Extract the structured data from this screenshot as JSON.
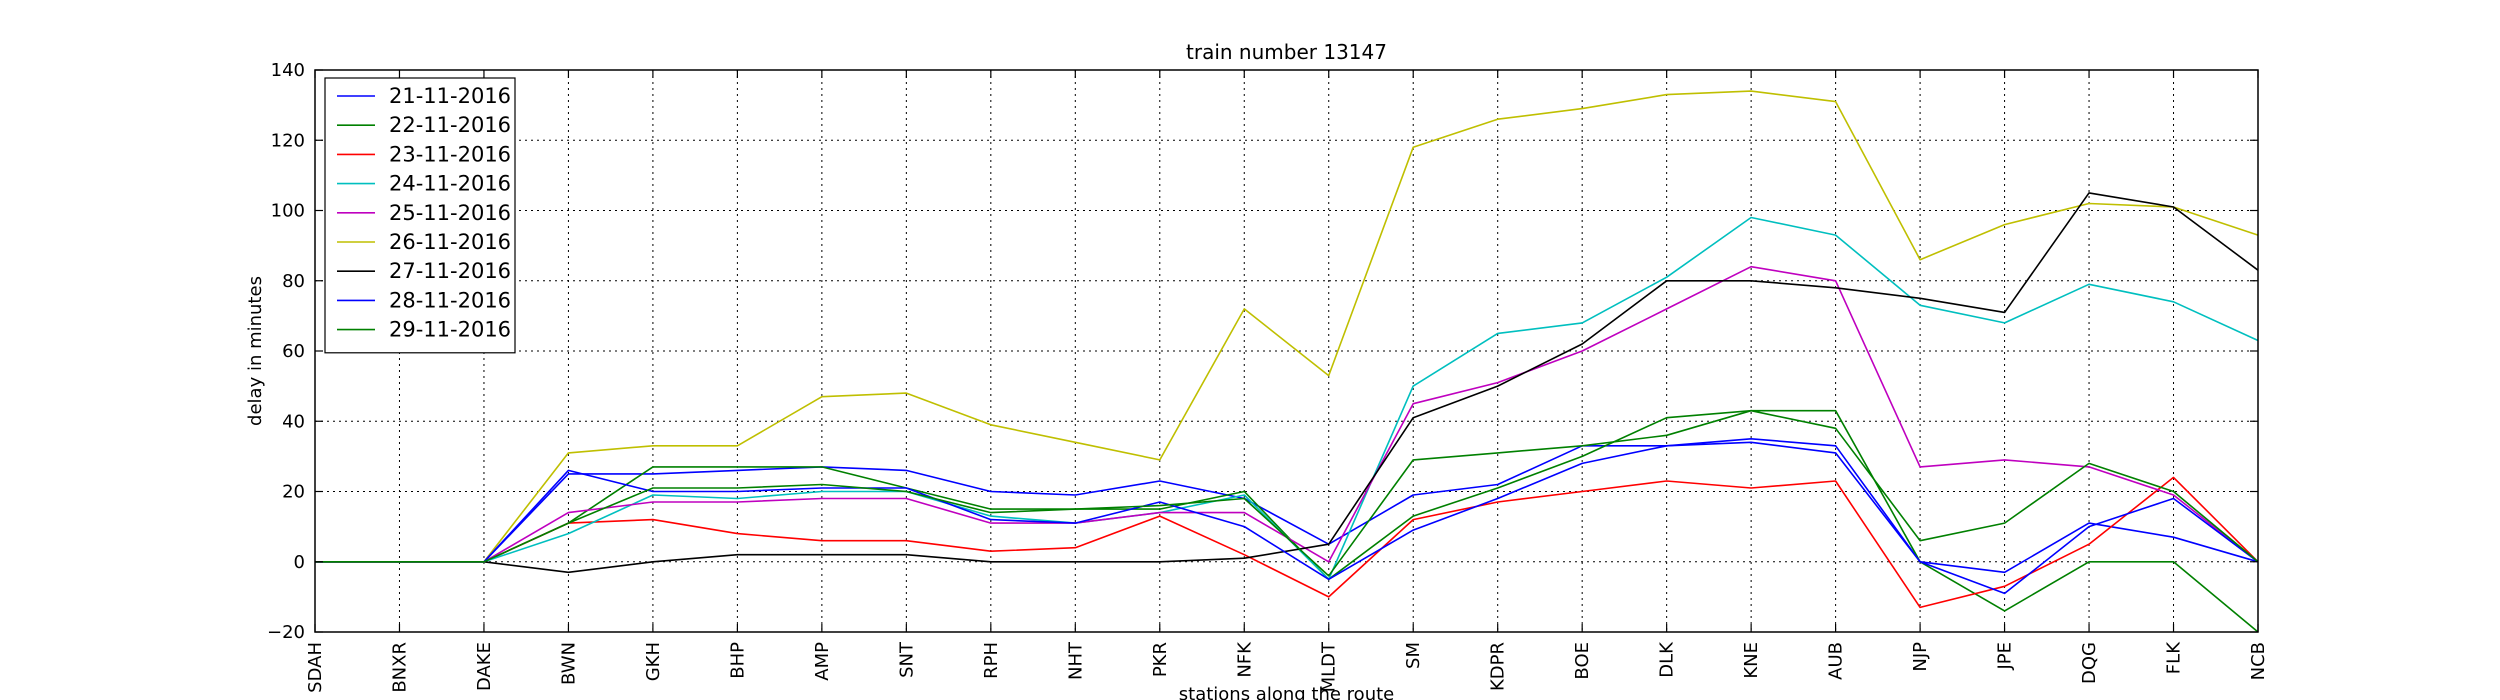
{
  "chart_data": {
    "type": "line",
    "title": "train number 13147",
    "xlabel": "stations along the route",
    "ylabel": "delay in minutes",
    "ylim": [
      -20,
      140
    ],
    "yticks": [
      -20,
      0,
      20,
      40,
      60,
      80,
      100,
      120,
      140
    ],
    "grid": true,
    "legend_position": "top-left",
    "categories": [
      "SDAH",
      "BNXR",
      "DAKE",
      "BWN",
      "GKH",
      "BHP",
      "AMP",
      "SNT",
      "RPH",
      "NHT",
      "PKR",
      "NFK",
      "MLDT",
      "SM",
      "KDPR",
      "BOE",
      "DLK",
      "KNE",
      "AUB",
      "NJP",
      "JPE",
      "DQG",
      "FLK",
      "NCB"
    ],
    "series": [
      {
        "name": "21-11-2016",
        "color": "#0000ff",
        "values": [
          0,
          0,
          0,
          25,
          25,
          26,
          27,
          26,
          20,
          19,
          23,
          18,
          5,
          19,
          22,
          33,
          33,
          35,
          33,
          0,
          -3,
          11,
          7,
          0
        ]
      },
      {
        "name": "22-11-2016",
        "color": "#008000",
        "values": [
          0,
          0,
          0,
          11,
          27,
          27,
          27,
          21,
          15,
          15,
          15,
          20,
          -5,
          13,
          21,
          30,
          41,
          43,
          43,
          0,
          -14,
          0,
          0,
          -20
        ]
      },
      {
        "name": "23-11-2016",
        "color": "#ff0000",
        "values": [
          0,
          0,
          0,
          11,
          12,
          8,
          6,
          6,
          3,
          4,
          13,
          2,
          -10,
          12,
          17,
          20,
          23,
          21,
          23,
          -13,
          -7,
          5,
          24,
          0
        ]
      },
      {
        "name": "24-11-2016",
        "color": "#00bfbf",
        "values": [
          0,
          0,
          0,
          8,
          19,
          18,
          20,
          20,
          13,
          11,
          14,
          19,
          -5,
          50,
          65,
          68,
          81,
          98,
          93,
          73,
          68,
          79,
          74,
          63
        ]
      },
      {
        "name": "25-11-2016",
        "color": "#bf00bf",
        "values": [
          0,
          0,
          0,
          14,
          17,
          17,
          18,
          18,
          11,
          11,
          14,
          14,
          0,
          45,
          51,
          60,
          72,
          84,
          80,
          27,
          29,
          27,
          19,
          0
        ]
      },
      {
        "name": "26-11-2016",
        "color": "#bfbf00",
        "values": [
          0,
          0,
          0,
          31,
          33,
          33,
          47,
          48,
          39,
          34,
          29,
          72,
          53,
          118,
          126,
          129,
          133,
          134,
          131,
          86,
          96,
          102,
          101,
          93
        ]
      },
      {
        "name": "27-11-2016",
        "color": "#000000",
        "values": [
          0,
          0,
          0,
          -3,
          0,
          2,
          2,
          2,
          0,
          0,
          0,
          1,
          5,
          41,
          50,
          62,
          80,
          80,
          78,
          75,
          71,
          105,
          101,
          83
        ]
      },
      {
        "name": "28-11-2016",
        "color": "#0000ff",
        "values": [
          0,
          0,
          0,
          26,
          20,
          20,
          21,
          21,
          12,
          11,
          17,
          10,
          -5,
          9,
          18,
          28,
          33,
          34,
          31,
          0,
          -9,
          10,
          18,
          0
        ]
      },
      {
        "name": "29-11-2016",
        "color": "#008000",
        "values": [
          0,
          0,
          0,
          11,
          21,
          21,
          22,
          20,
          14,
          15,
          16,
          18,
          -4,
          29,
          31,
          33,
          36,
          43,
          38,
          6,
          11,
          28,
          20,
          0
        ]
      }
    ]
  }
}
